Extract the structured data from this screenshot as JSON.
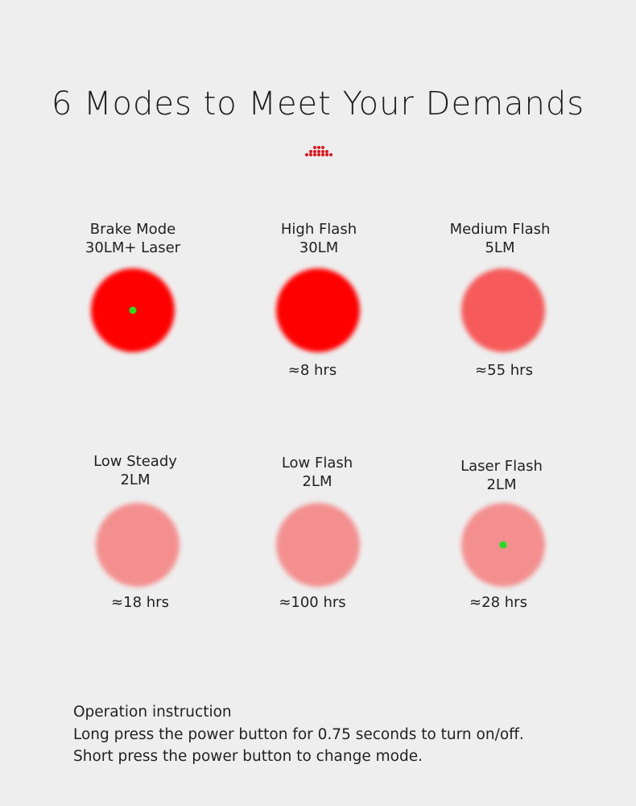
{
  "title": "6 Modes to Meet Your Demands",
  "accent_color": "#e0161c",
  "modes": [
    {
      "name": "Brake Mode",
      "output": "30LM+ Laser",
      "runtime": "",
      "color": "#ff0000",
      "laser": true
    },
    {
      "name": "High Flash",
      "output": "30LM",
      "runtime": "≈8 hrs",
      "color": "#ff0000",
      "laser": false
    },
    {
      "name": "Medium Flash",
      "output": "5LM",
      "runtime": "≈55 hrs",
      "color": "#f65a5a",
      "laser": false
    },
    {
      "name": "Low Steady",
      "output": "2LM",
      "runtime": "≈18 hrs",
      "color": "#f48f8f",
      "laser": false
    },
    {
      "name": "Low Flash",
      "output": "2LM",
      "runtime": "≈100 hrs",
      "color": "#f48f8f",
      "laser": false
    },
    {
      "name": "Laser Flash",
      "output": "2LM",
      "runtime": "≈28 hrs",
      "color": "#f48f8f",
      "laser": true
    }
  ],
  "instructions": {
    "heading": "Operation instruction",
    "lines": [
      "Long press the power button for 0.75 seconds to turn on/off.",
      "Short press the power button to change mode."
    ]
  }
}
